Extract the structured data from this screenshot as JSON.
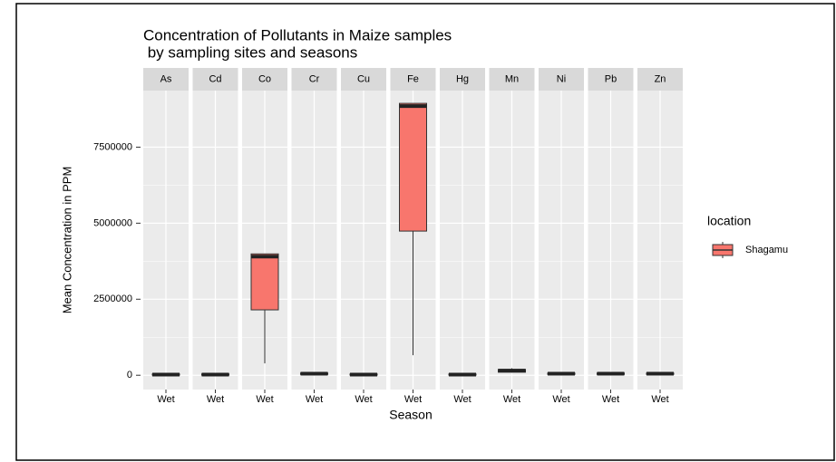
{
  "chart_data": {
    "type": "box",
    "title": [
      "Concentration of Pollutants in Maize samples",
      " by sampling sites and seasons"
    ],
    "y_label": "Mean Concentration in PPM",
    "x_label": "Season",
    "legend_title": "location",
    "facets": [
      "As",
      "Cd",
      "Co",
      "Cr",
      "Cu",
      "Fe",
      "Hg",
      "Mn",
      "Ni",
      "Pb",
      "Zn"
    ],
    "categories": [
      "Wet"
    ],
    "series": [
      {
        "name": "Shagamu",
        "color": "#f8766d",
        "values": [
          [
            0,
            5000,
            20000,
            40000,
            60000
          ],
          [
            0,
            5000,
            20000,
            40000,
            60000
          ],
          [
            390000,
            2150000,
            3900000,
            3990000,
            3990000
          ],
          [
            20000,
            30000,
            50000,
            70000,
            80000
          ],
          [
            0,
            5000,
            20000,
            40000,
            60000
          ],
          [
            660000,
            4740000,
            8850000,
            8940000,
            8940000
          ],
          [
            0,
            5000,
            20000,
            40000,
            60000
          ],
          [
            90000,
            100000,
            150000,
            190000,
            230000
          ],
          [
            20000,
            30000,
            50000,
            70000,
            80000
          ],
          [
            20000,
            30000,
            50000,
            70000,
            80000
          ],
          [
            20000,
            30000,
            50000,
            70000,
            80000
          ]
        ]
      }
    ],
    "ylim": [
      -470000,
      9360000
    ],
    "yticks": [
      0,
      2500000,
      5000000,
      7500000
    ],
    "grid": true
  }
}
